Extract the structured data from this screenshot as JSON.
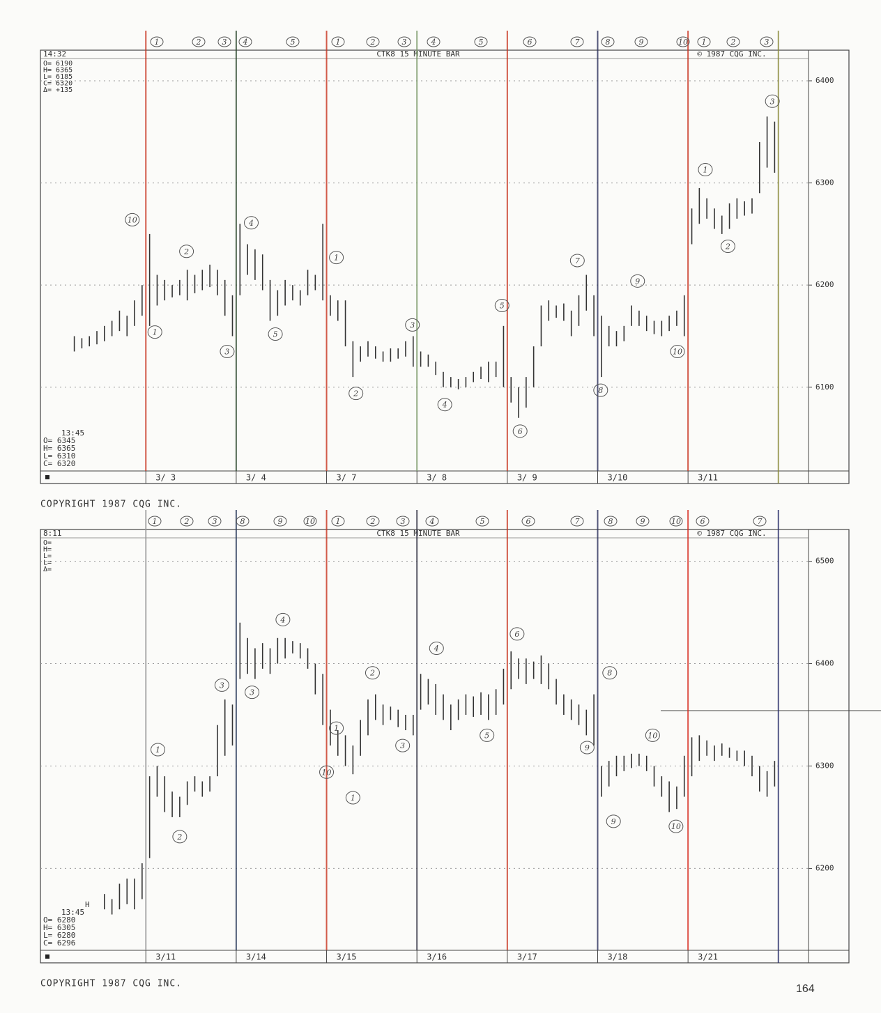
{
  "page_number": "164",
  "chart_data": [
    {
      "type": "ohlc",
      "title": "CTK8 15 MINUTE BAR",
      "notice": "© 1987 CQG INC.",
      "footer": "COPYRIGHT 1987 CQG INC.",
      "time": "14:32",
      "info_top": [
        "O= 6190",
        "H= 6365",
        "L= 6185",
        "C= 6320",
        "Δ= +135"
      ],
      "info_bottom": [
        "13:45",
        "O= 6345",
        "H= 6365",
        "L= 6310",
        "C= 6320"
      ],
      "wave_labels_top": [
        "1",
        "2",
        "3",
        "4",
        "5",
        "1",
        "2",
        "3",
        "4",
        "5",
        "6",
        "7",
        "8",
        "9",
        "10",
        "1",
        "2",
        "3"
      ],
      "annotations": [
        "10",
        "1",
        "2",
        "3",
        "4",
        "5",
        "1",
        "2",
        "3",
        "4",
        "5",
        "6",
        "7",
        "8",
        "9",
        "10",
        "1",
        "2",
        "3"
      ],
      "color": "#333333",
      "grid": true,
      "xlim": [
        0,
        102
      ],
      "xticks": [
        {
          "value": 14,
          "label": "3/ 3"
        },
        {
          "value": 26,
          "label": "3/ 4"
        },
        {
          "value": 38,
          "label": "3/ 7"
        },
        {
          "value": 50,
          "label": "3/ 8"
        },
        {
          "value": 62,
          "label": "3/ 9"
        },
        {
          "value": 74,
          "label": "3/10"
        },
        {
          "value": 86,
          "label": "3/11"
        }
      ],
      "ylim": [
        6018,
        6430
      ],
      "yticks": [
        6100,
        6200,
        6300,
        6400
      ],
      "x": [
        4.5,
        5.5,
        6.5,
        7.5,
        8.5,
        9.5,
        10.5,
        11.5,
        12.5,
        13.5,
        14.5,
        15.5,
        16.5,
        17.5,
        18.5,
        19.5,
        20.5,
        21.5,
        22.5,
        23.5,
        24.5,
        25.5,
        26.5,
        27.5,
        28.5,
        29.5,
        30.5,
        31.5,
        32.5,
        33.5,
        34.5,
        35.5,
        36.5,
        37.5,
        38.5,
        39.5,
        40.5,
        41.5,
        42.5,
        43.5,
        44.5,
        45.5,
        46.5,
        47.5,
        48.5,
        49.5,
        50.5,
        51.5,
        52.5,
        53.5,
        54.5,
        55.5,
        56.5,
        57.5,
        58.5,
        59.5,
        60.5,
        61.5,
        62.5,
        63.5,
        64.5,
        65.5,
        66.5,
        67.5,
        68.5,
        69.5,
        70.5,
        71.5,
        72.5,
        73.5,
        74.5,
        75.5,
        76.5,
        77.5,
        78.5,
        79.5,
        80.5,
        81.5,
        82.5,
        83.5,
        84.5,
        85.5,
        86.5,
        87.5,
        88.5,
        89.5,
        90.5,
        91.5,
        92.5,
        93.5,
        94.5,
        95.5,
        96.5,
        97.5
      ],
      "high": [
        6150,
        6148,
        6150,
        6155,
        6160,
        6165,
        6175,
        6170,
        6185,
        6200,
        6250,
        6210,
        6205,
        6200,
        6205,
        6215,
        6210,
        6215,
        6220,
        6215,
        6205,
        6190,
        6260,
        6240,
        6235,
        6230,
        6205,
        6195,
        6205,
        6200,
        6195,
        6215,
        6210,
        6260,
        6190,
        6185,
        6185,
        6145,
        6140,
        6145,
        6140,
        6135,
        6138,
        6138,
        6145,
        6150,
        6135,
        6132,
        6125,
        6115,
        6110,
        6108,
        6110,
        6115,
        6120,
        6125,
        6125,
        6160,
        6110,
        6100,
        6110,
        6140,
        6180,
        6185,
        6180,
        6182,
        6175,
        6190,
        6210,
        6190,
        6170,
        6160,
        6155,
        6160,
        6180,
        6175,
        6170,
        6165,
        6165,
        6170,
        6175,
        6190,
        6275,
        6295,
        6285,
        6275,
        6268,
        6280,
        6285,
        6282,
        6285,
        6340,
        6365,
        6360
      ],
      "low": [
        6135,
        6138,
        6140,
        6142,
        6145,
        6150,
        6155,
        6150,
        6160,
        6170,
        6160,
        6180,
        6185,
        6188,
        6190,
        6185,
        6192,
        6195,
        6198,
        6190,
        6170,
        6150,
        6190,
        6210,
        6205,
        6195,
        6165,
        6170,
        6180,
        6185,
        6180,
        6190,
        6195,
        6185,
        6170,
        6165,
        6140,
        6110,
        6125,
        6130,
        6128,
        6125,
        6125,
        6128,
        6130,
        6120,
        6120,
        6120,
        6112,
        6100,
        6100,
        6098,
        6100,
        6105,
        6108,
        6105,
        6110,
        6100,
        6085,
        6070,
        6080,
        6100,
        6140,
        6165,
        6168,
        6165,
        6150,
        6160,
        6175,
        6150,
        6110,
        6140,
        6140,
        6145,
        6160,
        6160,
        6155,
        6152,
        6150,
        6155,
        6160,
        6150,
        6240,
        6260,
        6265,
        6255,
        6250,
        6255,
        6265,
        6268,
        6270,
        6290,
        6315,
        6310
      ]
    },
    {
      "type": "ohlc",
      "title": "CTK8 15 MINUTE BAR",
      "notice": "© 1987 CQG INC.",
      "footer": "COPYRIGHT 1987 CQG INC.",
      "time": "8:11",
      "info_top": [
        "O=",
        "H=",
        "L=",
        "L=",
        "Δ="
      ],
      "info_bottom": [
        "H",
        "13:45",
        "O= 6280",
        "H= 6305",
        "L= 6280",
        "C= 6296"
      ],
      "wave_labels_top": [
        "1",
        "2",
        "3",
        "8",
        "9",
        "10",
        "1",
        "2",
        "3",
        "4",
        "5",
        "6",
        "7",
        "8",
        "9",
        "10",
        "6",
        "7"
      ],
      "annotations": [
        "1",
        "2",
        "3",
        "3",
        "4",
        "1",
        "10",
        "1",
        "2",
        "3",
        "4",
        "5",
        "6",
        "9",
        "8",
        "9",
        "10",
        "10"
      ],
      "color": "#333333",
      "grid": true,
      "xlim": [
        0,
        102
      ],
      "xticks": [
        {
          "value": 14,
          "label": "3/11"
        },
        {
          "value": 26,
          "label": "3/14"
        },
        {
          "value": 38,
          "label": "3/15"
        },
        {
          "value": 50,
          "label": "3/16"
        },
        {
          "value": 62,
          "label": "3/17"
        },
        {
          "value": 74,
          "label": "3/18"
        },
        {
          "value": 86,
          "label": "3/21"
        }
      ],
      "ylim": [
        6120,
        6531
      ],
      "yticks": [
        6200,
        6300,
        6400,
        6500
      ],
      "x": [
        8.5,
        9.5,
        10.5,
        11.5,
        12.5,
        13.5,
        14.5,
        15.5,
        16.5,
        17.5,
        18.5,
        19.5,
        20.5,
        21.5,
        22.5,
        23.5,
        24.5,
        25.5,
        26.5,
        27.5,
        28.5,
        29.5,
        30.5,
        31.5,
        32.5,
        33.5,
        34.5,
        35.5,
        36.5,
        37.5,
        38.5,
        39.5,
        40.5,
        41.5,
        42.5,
        43.5,
        44.5,
        45.5,
        46.5,
        47.5,
        48.5,
        49.5,
        50.5,
        51.5,
        52.5,
        53.5,
        54.5,
        55.5,
        56.5,
        57.5,
        58.5,
        59.5,
        60.5,
        61.5,
        62.5,
        63.5,
        64.5,
        65.5,
        66.5,
        67.5,
        68.5,
        69.5,
        70.5,
        71.5,
        72.5,
        73.5,
        74.5,
        75.5,
        76.5,
        77.5,
        78.5,
        79.5,
        80.5,
        81.5,
        82.5,
        83.5,
        84.5,
        85.5,
        86.5,
        87.5,
        88.5,
        89.5,
        90.5,
        91.5,
        92.5,
        93.5,
        94.5,
        95.5,
        96.5,
        97.5
      ],
      "high": [
        6175,
        6170,
        6185,
        6190,
        6190,
        6205,
        6290,
        6300,
        6290,
        6275,
        6270,
        6285,
        6290,
        6285,
        6290,
        6340,
        6365,
        6360,
        6440,
        6425,
        6415,
        6420,
        6415,
        6425,
        6425,
        6422,
        6420,
        6415,
        6400,
        6390,
        6355,
        6335,
        6330,
        6320,
        6345,
        6365,
        6370,
        6360,
        6358,
        6355,
        6350,
        6350,
        6390,
        6385,
        6380,
        6370,
        6360,
        6365,
        6370,
        6368,
        6372,
        6370,
        6375,
        6395,
        6412,
        6405,
        6405,
        6402,
        6408,
        6400,
        6385,
        6370,
        6365,
        6360,
        6355,
        6370,
        6300,
        6305,
        6310,
        6310,
        6312,
        6312,
        6310,
        6300,
        6290,
        6285,
        6280,
        6310,
        6328,
        6330,
        6325,
        6320,
        6322,
        6318,
        6315,
        6315,
        6310,
        6300,
        6295,
        6305
      ],
      "low": [
        6160,
        6155,
        6160,
        6165,
        6160,
        6170,
        6210,
        6270,
        6255,
        6250,
        6250,
        6262,
        6275,
        6270,
        6275,
        6290,
        6310,
        6320,
        6385,
        6390,
        6385,
        6395,
        6390,
        6400,
        6405,
        6410,
        6405,
        6395,
        6370,
        6340,
        6320,
        6310,
        6300,
        6292,
        6310,
        6330,
        6345,
        6340,
        6345,
        6338,
        6335,
        6330,
        6355,
        6360,
        6350,
        6345,
        6335,
        6345,
        6350,
        6348,
        6350,
        6345,
        6350,
        6360,
        6375,
        6385,
        6380,
        6385,
        6380,
        6375,
        6360,
        6350,
        6345,
        6340,
        6330,
        6320,
        6270,
        6280,
        6290,
        6295,
        6298,
        6300,
        6295,
        6280,
        6270,
        6255,
        6258,
        6270,
        6290,
        6305,
        6310,
        6305,
        6310,
        6308,
        6305,
        6300,
        6290,
        6275,
        6270,
        6280
      ]
    }
  ]
}
